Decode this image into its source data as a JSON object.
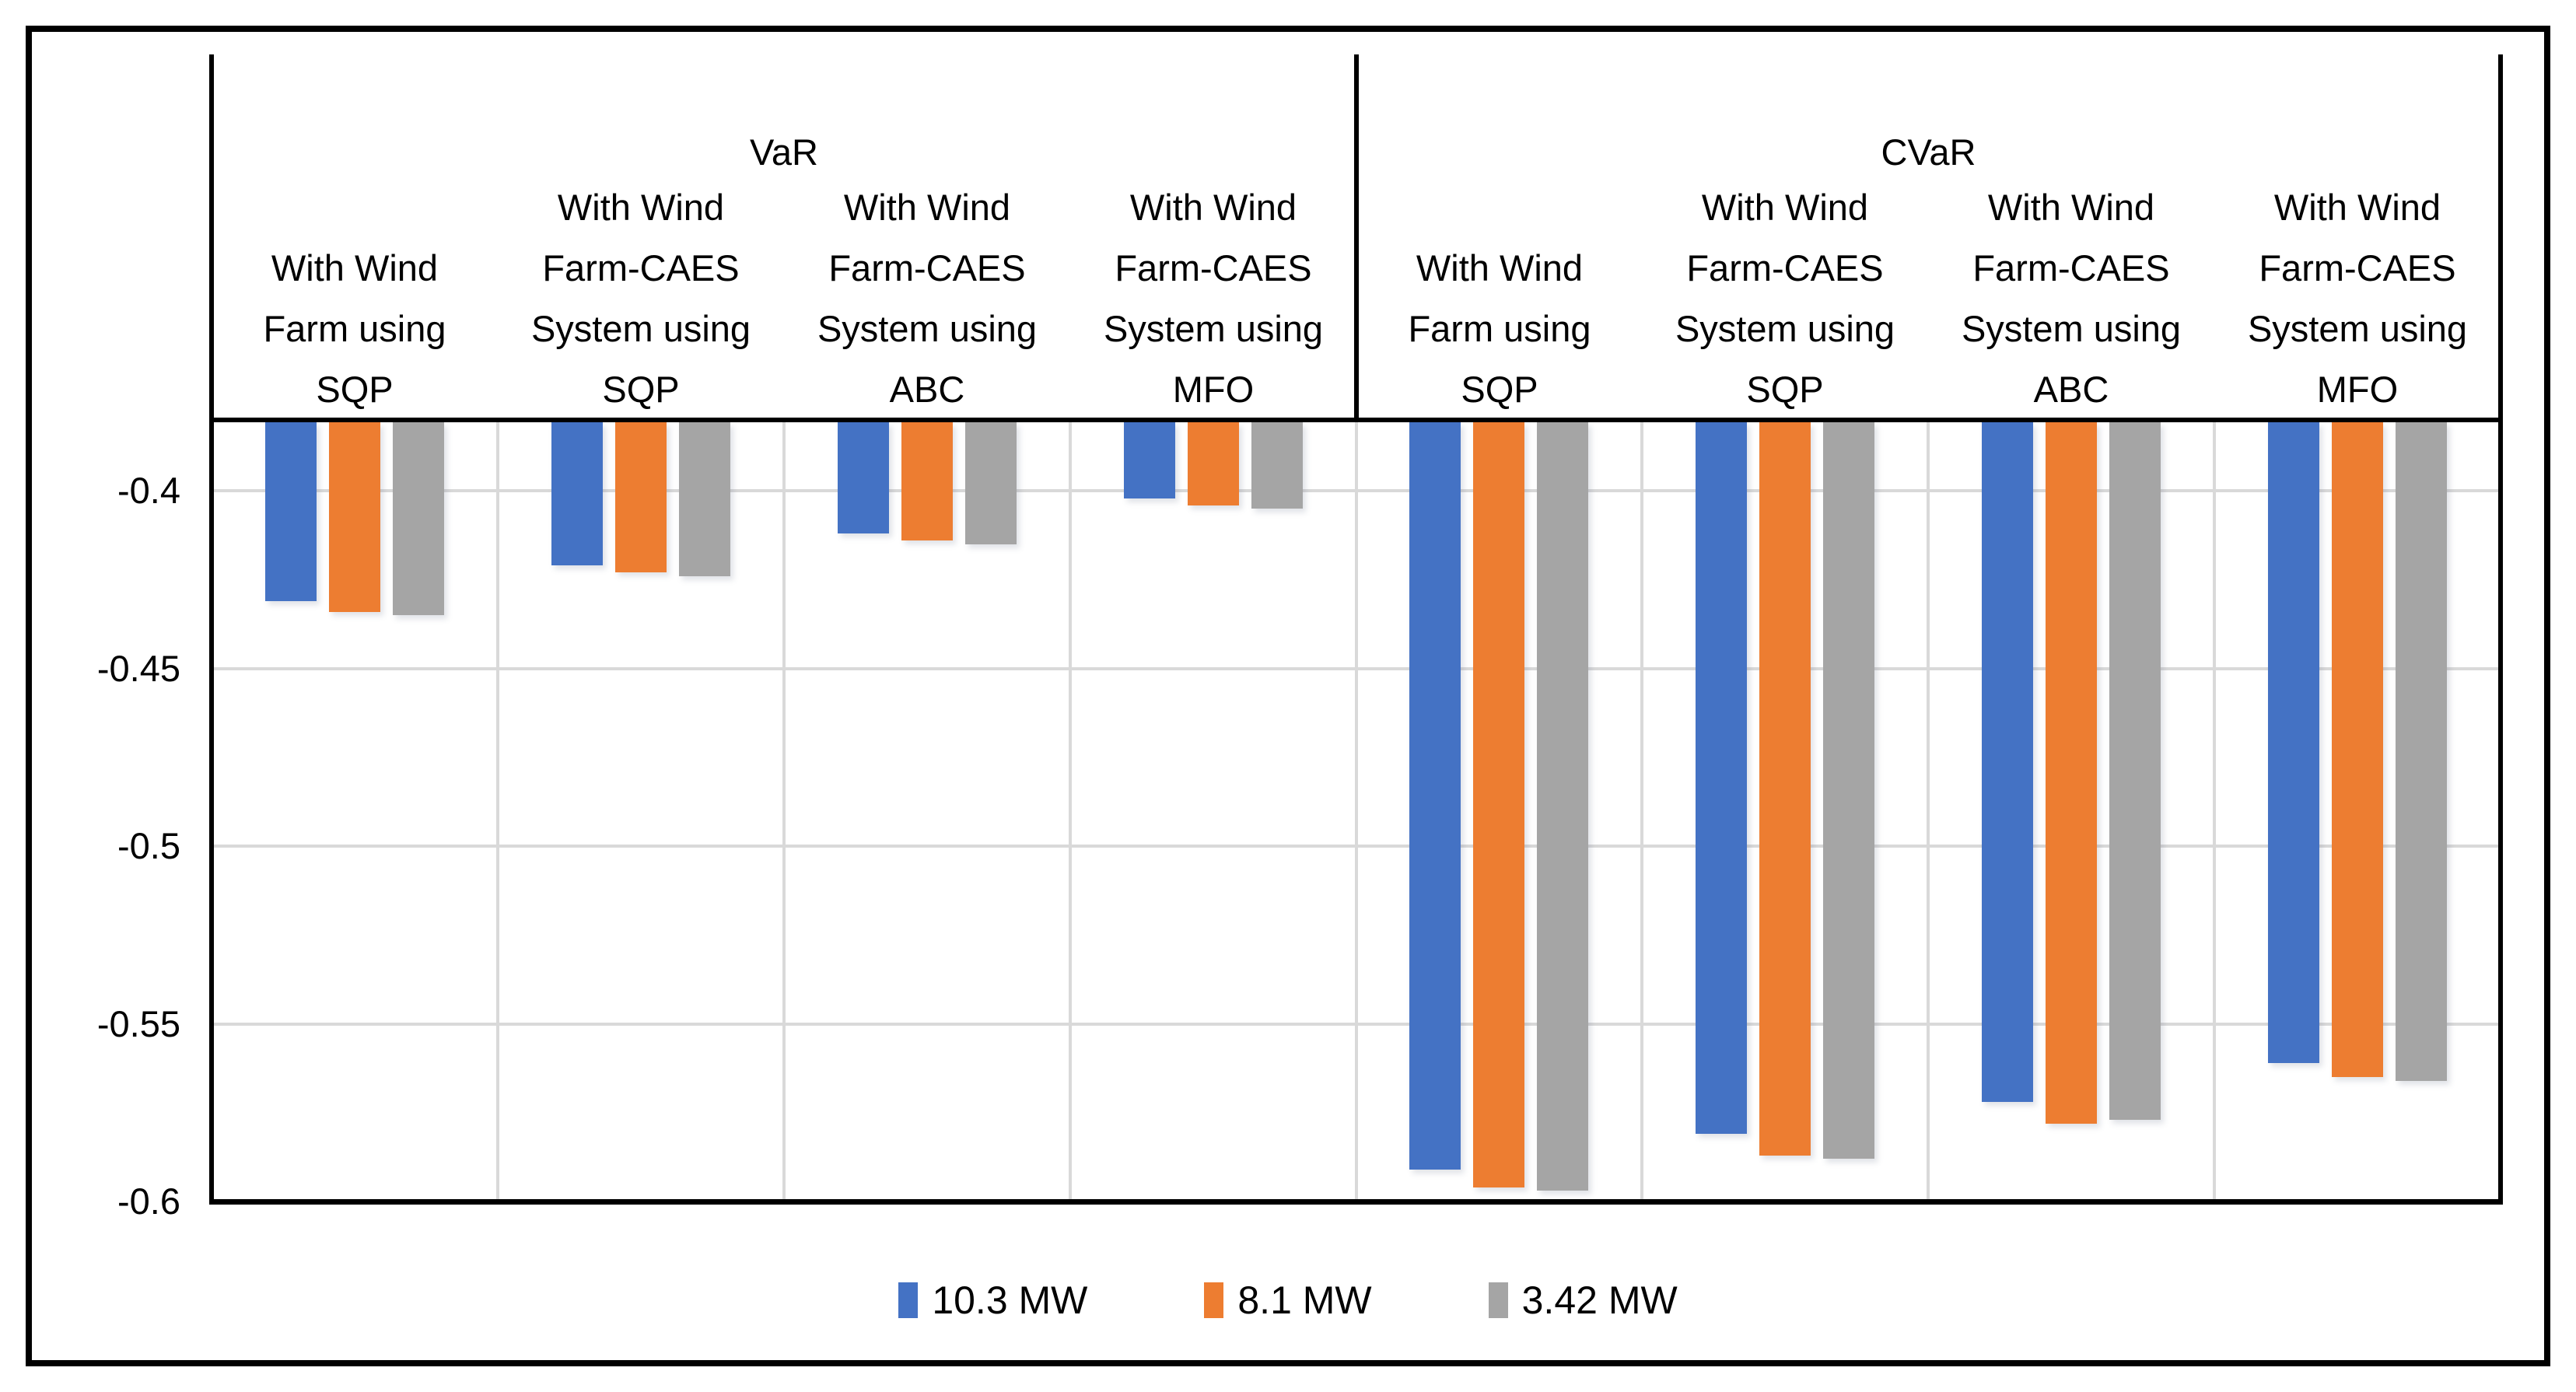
{
  "chart_data": {
    "type": "bar",
    "panels": [
      "VaR",
      "CVaR"
    ],
    "categories": [
      {
        "panel": "VaR",
        "lines": [
          "With Wind",
          "Farm using",
          "SQP"
        ]
      },
      {
        "panel": "VaR",
        "lines": [
          "With Wind",
          "Farm-CAES",
          "System using",
          "SQP"
        ]
      },
      {
        "panel": "VaR",
        "lines": [
          "With Wind",
          "Farm-CAES",
          "System using",
          "ABC"
        ]
      },
      {
        "panel": "VaR",
        "lines": [
          "With Wind",
          "Farm-CAES",
          "System using",
          "MFO"
        ]
      },
      {
        "panel": "CVaR",
        "lines": [
          "With Wind",
          "Farm using",
          "SQP"
        ]
      },
      {
        "panel": "CVaR",
        "lines": [
          "With Wind",
          "Farm-CAES",
          "System using",
          "SQP"
        ]
      },
      {
        "panel": "CVaR",
        "lines": [
          "With Wind",
          "Farm-CAES",
          "System using",
          "ABC"
        ]
      },
      {
        "panel": "CVaR",
        "lines": [
          "With Wind",
          "Farm-CAES",
          "System using",
          "MFO"
        ]
      }
    ],
    "series": [
      {
        "name": "10.3 MW",
        "color": "#4472C4",
        "values": [
          -0.431,
          -0.421,
          -0.412,
          -0.402,
          -0.591,
          -0.581,
          -0.572,
          -0.561
        ]
      },
      {
        "name": "8.1 MW",
        "color": "#ED7D31",
        "values": [
          -0.434,
          -0.423,
          -0.414,
          -0.404,
          -0.596,
          -0.587,
          -0.578,
          -0.565
        ]
      },
      {
        "name": "3.42 MW",
        "color": "#A5A5A5",
        "values": [
          -0.435,
          -0.424,
          -0.415,
          -0.405,
          -0.597,
          -0.588,
          -0.577,
          -0.566
        ]
      }
    ],
    "y_axis": {
      "min": -0.6,
      "max": -0.38,
      "tick_step": 0.05,
      "ticks": [
        -0.4,
        -0.45,
        -0.5,
        -0.55,
        -0.6
      ],
      "tick_labels": [
        "-0.4",
        "-0.45",
        "-0.5",
        "-0.55",
        "-0.6"
      ]
    },
    "legend": [
      "10.3 MW",
      "8.1 MW",
      "3.42 MW"
    ],
    "grid_color": "#D9D9D9",
    "axis_color": "#000000",
    "legend_position": "bottom-center"
  }
}
